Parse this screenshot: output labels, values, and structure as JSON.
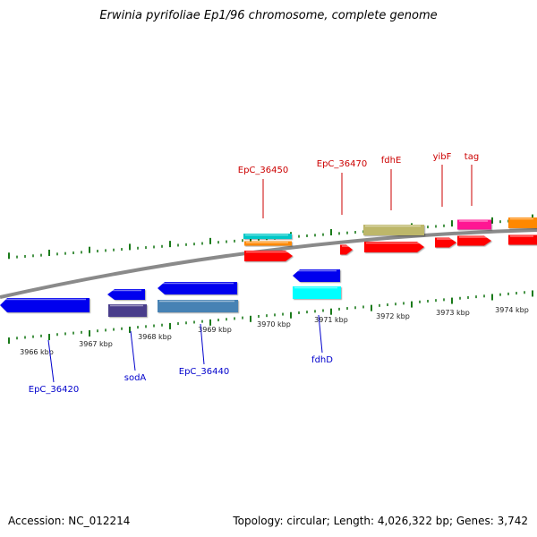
{
  "title": "Erwinia pyrifoliae Ep1/96 chromosome, complete genome",
  "footer": {
    "accession": "Accession: NC_012214",
    "topology": "Topology: circular; Length: 4,026,322 bp; Genes: 3,742"
  },
  "colors": {
    "backbone": "#8a8a8a",
    "tick": "#1a7a1a",
    "label_top": "#cc0000",
    "label_bottom": "#0000cc"
  },
  "scale_labels": [
    "3966 kbp",
    "3967 kbp",
    "3968 kbp",
    "3969 kbp",
    "3970 kbp",
    "3971 kbp",
    "3972 kbp",
    "3973 kbp",
    "3974 kbp"
  ],
  "genes_top": [
    {
      "name": "EpC_36450",
      "color": "#00c8c8"
    },
    {
      "name": "",
      "color": "#ff8800"
    },
    {
      "name": "",
      "color": "#ff0000"
    },
    {
      "name": "EpC_36470",
      "color": "#ff0000"
    },
    {
      "name": "fdhE",
      "color": "#bdb76b"
    },
    {
      "name": "",
      "color": "#ff0000"
    },
    {
      "name": "yibF",
      "color": "#ff0000"
    },
    {
      "name": "tag",
      "color": "#ff1493"
    },
    {
      "name": "",
      "color": "#ff0000"
    },
    {
      "name": "",
      "color": "#ff8800"
    },
    {
      "name": "",
      "color": "#ff0000"
    }
  ],
  "genes_bottom": [
    {
      "name": "EpC_36420",
      "color": "#0000ee"
    },
    {
      "name": "sodA",
      "color": "#0000ee"
    },
    {
      "name": "",
      "color": "#483d8b"
    },
    {
      "name": "EpC_36440",
      "color": "#0000ee"
    },
    {
      "name": "",
      "color": "#4682b4"
    },
    {
      "name": "fdhD",
      "color": "#0000ee"
    },
    {
      "name": "",
      "color": "#00ffff"
    }
  ]
}
